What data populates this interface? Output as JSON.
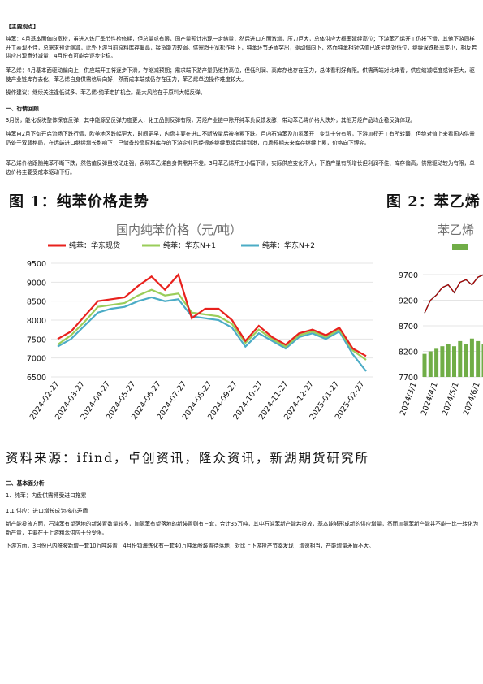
{
  "section_key": "【主要观点】",
  "para1": "纯苯：4月基本面偏向宽松，虽进入炼厂季节性检修期，但总量或有限，国产量预计出现一定缩量，然后进口方面激增，压力巨大，总体供应大概率延续高位；下游苯乙烯开工仍将下滑，其他下游同样开工表现不佳，总需求预计缩减，此外下游当前原料库存偏高，接货能力较弱。供需趋于宽松作用下，纯苯环节矛盾突出，驱动偏向下，然而纯苯相对估值已跌至绝对低位，继续深跌概率变小，相反若供应出现意外减量，4月份有可能会逐步企稳。",
  "para2": "苯乙烯：4月基本面驱动偏向上，供应端开工将逐步下滑，存缩减预期；需求端下游产量仍维持高位，但低利润、高库存也存在压力，总体看利好有限。供需两端对比来看，供应缩减幅度或许更大，驱使产业链库存去化，苯乙烯自身供需格局向好，然而成本端或仍存在压力，苯乙烯单边操作难度较大。",
  "para3": "操作建议：继续关注逢低试多、苯乙烯-纯苯走扩机会。最大风险在于原料大幅反弹。",
  "sec1_heading": "一、行情回顾",
  "para4": "3月份，能化板块整体探底反弹，其中能源品反弹力度更大，化工品则反弹有限，芳烃产业链中除开纯苯负反馈发酵，带动苯乙烯价格大跌外，其他芳烃产品均企稳反弹体现。",
  "para5": "纯苯自2月下旬开启流畅下跌行情，欧美地区跌幅更大，时间更早，内盘主要在进口不断放量后被拖累下跌。月内石油苯及加氢苯开工变动十分有限，下游加权开工有所转弱，但绝对值上来看国内供需仍处于双弱格局，在远端进口继续增长影响下，已储备较高原料库存的下游企业已经很难继续承接后续到港，市场预期未来库存继续上累，价格向下博弈。",
  "para6": "苯乙烯价格跟随纯苯不断下跌，然估值反弹虽较动走强，表明苯乙烯自身供需并不差。3月苯乙烯开工小幅下滑，实际供应变化不大，下游产量有所增长但利润不佳、库存偏高，供需驱动较为有限，单边价格主要受成本驱动下行。",
  "fig1_title": "图 1：纯苯价格走势",
  "fig2_title": "图 2：苯乙烯",
  "source_line": "资料来源：ifind，卓创资讯，隆众资讯，新湖期货研究所",
  "sec2_heading": "二、基本面分析",
  "sub1": "1、纯苯：内盘供需博受进口拖累",
  "sub11": "1.1 供应：进口增长成为核心矛盾",
  "para7": "新产能投放方面，石油苯有望落地的新装置数量较多，加氢苯有望落地的新装置则有三套，合计35万吨，其中石油苯新产能若投放，基本能够形成新的供应增量，然而加氢苯新产能并不能一比一转化为新产量，主要在于上游粗苯供应十分受限。",
  "para8": "下游方面，3月份已内酰胺新增一套10万吨装置，4月份镇海炼化有一套40万吨苯酚装置待落地，对比上下游投产节奏发现，增速相当，产能增量矛盾不大。",
  "chart_data": [
    {
      "type": "line",
      "title": "国内纯苯价格（元/吨）",
      "xlabel": "",
      "ylabel": "",
      "ylim": [
        6500,
        9500
      ],
      "yticks": [
        6500,
        7000,
        7500,
        8000,
        8500,
        9000,
        9500
      ],
      "x_tick_labels": [
        "2024-02-27",
        "2024-03-27",
        "2024-04-27",
        "2024-05-27",
        "2024-06-27",
        "2024-07-27",
        "2024-08-27",
        "2024-09-27",
        "2024-10-27",
        "2024-11-27",
        "2024-12-27",
        "2025-01-27",
        "2025-02-27"
      ],
      "legend_position": "top",
      "grid": true,
      "colors": {
        "spot": "#e8211d",
        "n1": "#9acd5a",
        "n2": "#4bacc6"
      },
      "series": [
        {
          "name": "纯苯：华东现货",
          "values": [
            7500,
            7700,
            8100,
            8500,
            8550,
            8600,
            8900,
            9150,
            8800,
            9200,
            8050,
            8300,
            8300,
            8000,
            7450,
            7850,
            7550,
            7350,
            7650,
            7750,
            7600,
            7800,
            7250,
            7050
          ]
        },
        {
          "name": "纯苯：华东N+1",
          "values": [
            7350,
            7600,
            7950,
            8350,
            8400,
            8450,
            8650,
            8800,
            8650,
            8700,
            8200,
            8150,
            8100,
            7900,
            7400,
            7750,
            7500,
            7300,
            7600,
            7700,
            7550,
            7750,
            7200,
            6950
          ]
        },
        {
          "name": "纯苯：华东N+2",
          "values": [
            7300,
            7500,
            7850,
            8200,
            8300,
            8350,
            8500,
            8600,
            8500,
            8550,
            8100,
            8050,
            8000,
            7800,
            7300,
            7650,
            7450,
            7250,
            7550,
            7650,
            7500,
            7700,
            7100,
            6650
          ]
        }
      ]
    },
    {
      "type": "line",
      "title": "苯乙烯",
      "ylim": [
        7700,
        9700
      ],
      "yticks": [
        7700,
        8200,
        8700,
        9200,
        9700
      ],
      "x_tick_labels": [
        "2024/3/1",
        "2024/4/1",
        "2024/5/1",
        "2024/6/1"
      ],
      "legend_position": "top",
      "series": [
        {
          "name": "",
          "values": [
            8950,
            9200,
            9300,
            9450,
            9500,
            9350,
            9550,
            9600,
            9500,
            9650,
            9700
          ]
        },
        {
          "name": "",
          "values": [
            8150,
            8200,
            8250,
            8300,
            8350,
            8300,
            8400,
            8350,
            8450,
            8400,
            8350
          ]
        }
      ]
    }
  ]
}
